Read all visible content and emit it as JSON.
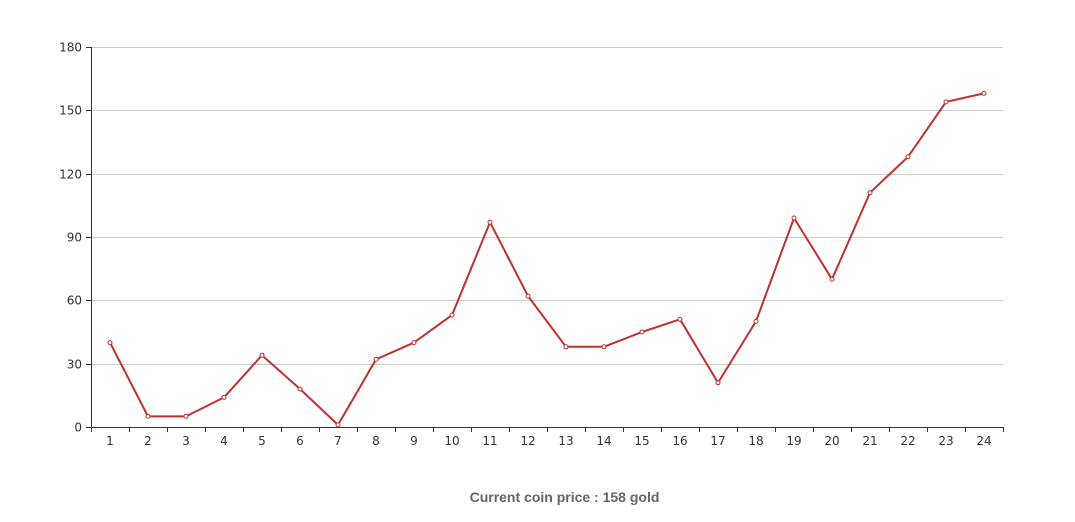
{
  "chart_data": {
    "type": "line",
    "x": [
      1,
      2,
      3,
      4,
      5,
      6,
      7,
      8,
      9,
      10,
      11,
      12,
      13,
      14,
      15,
      16,
      17,
      18,
      19,
      20,
      21,
      22,
      23,
      24
    ],
    "series": [
      {
        "values": [
          40,
          5,
          5,
          14,
          34,
          18,
          1,
          32,
          40,
          53,
          97,
          62,
          38,
          38,
          45,
          51,
          21,
          50,
          99,
          70,
          111,
          128,
          154,
          158
        ],
        "color": "#c0312e"
      }
    ],
    "ylim": [
      0,
      180
    ],
    "yticks": [
      0,
      30,
      60,
      90,
      120,
      150,
      180
    ],
    "grid": "horizontal",
    "title": "",
    "xlabel": "",
    "ylabel": ""
  },
  "caption": "Current coin price : 158 gold"
}
